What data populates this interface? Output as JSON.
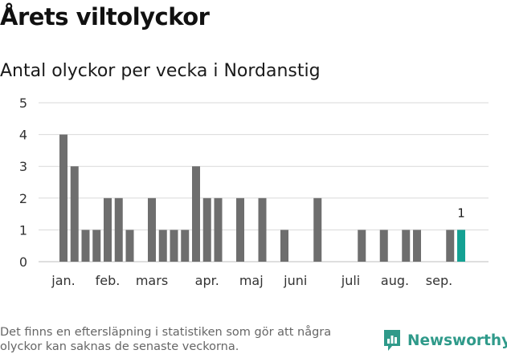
{
  "header": {
    "title": "Årets viltolyckor",
    "subtitle": "Antal olyckor per vecka i Nordanstig"
  },
  "footer": {
    "note": "Det finns en eftersläpning i statistiken som gör att några olyckor kan saknas de senaste veckorna.",
    "brand": "Newsworthy"
  },
  "colors": {
    "bar": "#6e6e6e",
    "highlight": "#14a193",
    "grid": "#d9d9d9",
    "brand": "#2f9a8a"
  },
  "chart_data": {
    "type": "bar",
    "x": [
      1,
      2,
      3,
      4,
      5,
      6,
      7,
      8,
      9,
      10,
      11,
      12,
      13,
      14,
      15,
      16,
      17,
      18,
      19,
      20,
      21,
      22,
      23,
      24,
      25,
      26,
      27,
      28,
      29,
      30,
      31,
      32,
      33,
      34,
      35,
      36,
      37,
      38
    ],
    "values": [
      4,
      3,
      1,
      1,
      2,
      2,
      1,
      0,
      2,
      1,
      1,
      1,
      3,
      2,
      2,
      0,
      2,
      0,
      2,
      0,
      1,
      0,
      0,
      2,
      0,
      0,
      0,
      1,
      0,
      1,
      0,
      1,
      1,
      0,
      0,
      1,
      1,
      null
    ],
    "highlight": {
      "x": 37,
      "value": 1,
      "label": "1"
    },
    "ylim": [
      0,
      5
    ],
    "yticks": [
      0,
      1,
      2,
      3,
      4,
      5
    ],
    "xticks": [
      {
        "label": "jan.",
        "x": 1
      },
      {
        "label": "feb.",
        "x": 5
      },
      {
        "label": "mars",
        "x": 9
      },
      {
        "label": "apr.",
        "x": 14
      },
      {
        "label": "maj",
        "x": 18
      },
      {
        "label": "juni",
        "x": 22
      },
      {
        "label": "juli",
        "x": 27
      },
      {
        "label": "aug.",
        "x": 31
      },
      {
        "label": "sep.",
        "x": 35
      }
    ],
    "grid": true,
    "xlabel": "",
    "ylabel": ""
  }
}
